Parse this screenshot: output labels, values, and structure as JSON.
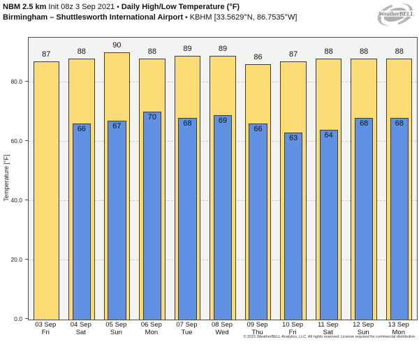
{
  "header": {
    "model": "NBM 2.5 km",
    "init": "Init 08z 3 Sep 2021",
    "bullet": "•",
    "product": "Daily High/Low Temperature (°F)",
    "station": "Birmingham – Shuttlesworth International Airport",
    "station_meta": "KBHM [33.5629°N, 86.7535°W]"
  },
  "logo": {
    "brand": "WeatherBELL",
    "subtext": "Analytics LLC"
  },
  "chart_data": {
    "type": "bar",
    "title": "Daily High/Low Temperature (°F)",
    "station": "Birmingham – Shuttlesworth International Airport (KBHM)",
    "ylabel": "Temperature [°F]",
    "ylim": [
      0,
      95
    ],
    "yticks": [
      0,
      20,
      40,
      60,
      80
    ],
    "ytick_labels": [
      "0.0",
      "20.0",
      "40.0",
      "60.0",
      "80.0"
    ],
    "grid": "horizontal-dashed",
    "legend_position": "none",
    "plot_background": "#f3f3f1",
    "categories": [
      {
        "date": "03 Sep",
        "day": "Fri"
      },
      {
        "date": "04 Sep",
        "day": "Sat"
      },
      {
        "date": "05 Sep",
        "day": "Sun"
      },
      {
        "date": "06 Sep",
        "day": "Mon"
      },
      {
        "date": "07 Sep",
        "day": "Tue"
      },
      {
        "date": "08 Sep",
        "day": "Wed"
      },
      {
        "date": "09 Sep",
        "day": "Thu"
      },
      {
        "date": "10 Sep",
        "day": "Fri"
      },
      {
        "date": "11 Sep",
        "day": "Sat"
      },
      {
        "date": "12 Sep",
        "day": "Sun"
      },
      {
        "date": "13 Sep",
        "day": "Mon"
      }
    ],
    "series": [
      {
        "name": "Daily High",
        "color": "#FBDC74",
        "border_color": "#3c3c3c",
        "values": [
          87,
          88,
          90,
          88,
          89,
          89,
          86,
          87,
          88,
          88,
          88
        ]
      },
      {
        "name": "Daily Low",
        "color": "#6191E2",
        "border_color": "#3c3c3c",
        "values": [
          null,
          66,
          67,
          70,
          68,
          69,
          66,
          63,
          64,
          68,
          68
        ]
      }
    ]
  },
  "footer": "© 2021 WeatherBELL Analytics, LLC. All rights reserved. License required for commercial distribution."
}
